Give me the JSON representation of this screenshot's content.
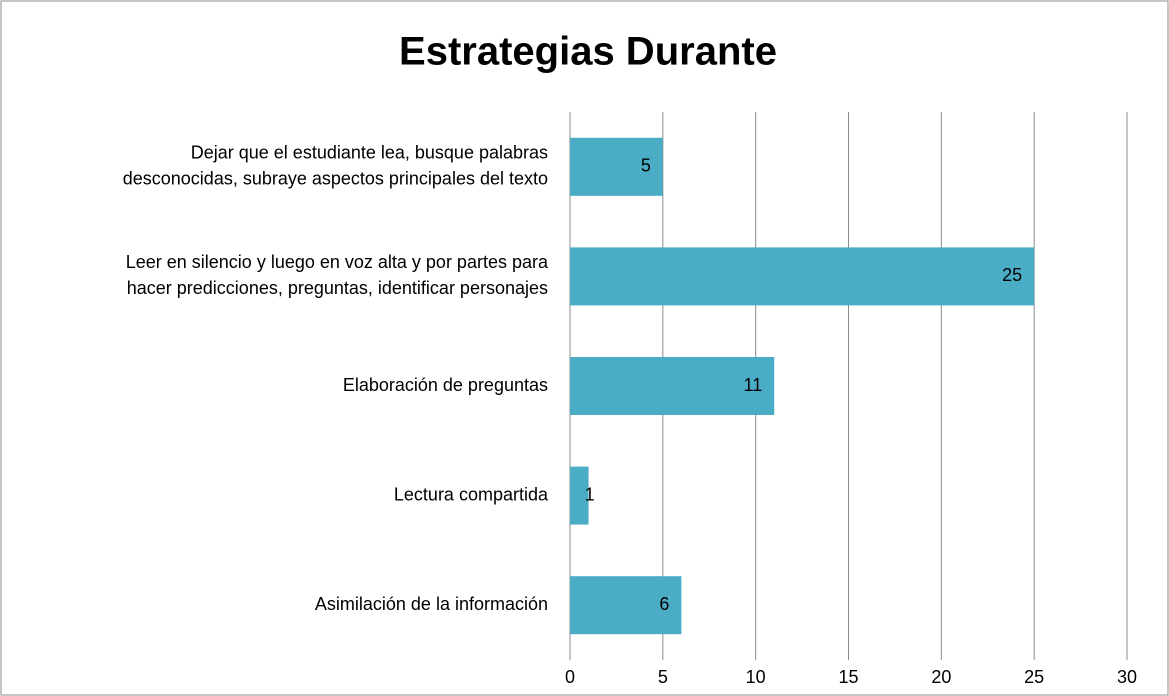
{
  "chart_data": {
    "type": "bar",
    "orientation": "horizontal",
    "title": "Estrategias Durante",
    "categories": [
      [
        "Dejar que el estudiante lea, busque palabras",
        "desconocidas, subraye aspectos principales del texto"
      ],
      [
        "Leer en silencio y luego en voz alta y por partes para",
        "hacer predicciones, preguntas, identificar personajes"
      ],
      [
        "Elaboración de preguntas"
      ],
      [
        "Lectura compartida"
      ],
      [
        "Asimilación de la información"
      ]
    ],
    "values": [
      5,
      25,
      11,
      1,
      6
    ],
    "color": "#4bacc6",
    "xlim": [
      0,
      30
    ],
    "xticks": [
      0,
      5,
      10,
      15,
      20,
      25,
      30
    ],
    "grid": true
  }
}
